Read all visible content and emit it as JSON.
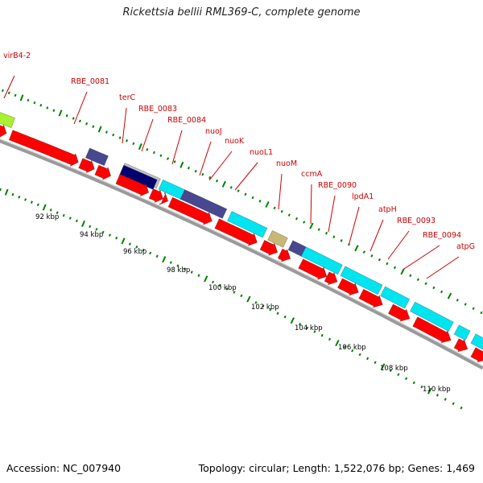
{
  "title": "Rickettsia bellii RML369-C, complete genome",
  "footer": {
    "accession": "Accession: NC_007940",
    "summary": "Topology: circular; Length: 1,522,076 bp; Genes: 1,469"
  },
  "colors": {
    "cds": "#ff0000",
    "cyan_feature": "#00e5f0",
    "navy_feature": "#484890",
    "dark_navy_feature": "#000070",
    "green_feature": "#a8f030",
    "tan_feature": "#c8b878",
    "gray_feature": "#c0c0c0",
    "label_color": "#cc0000",
    "tick_color": "#008000",
    "backbone": "#888888"
  },
  "gene_labels": [
    "virB4-2",
    "RBE_0081",
    "terC",
    "RBE_0083",
    "RBE_0084",
    "nuoJ",
    "nuoK",
    "nuoL1",
    "nuoM",
    "ccmA",
    "RBE_0090",
    "lpdA1",
    "atpH",
    "RBE_0093",
    "RBE_0094",
    "atpG"
  ],
  "tick_labels": [
    "92 kbp",
    "94 kbp",
    "96 kbp",
    "98 kbp",
    "100 kbp",
    "102 kbp",
    "104 kbp",
    "106 kbp",
    "108 kbp",
    "110 kbp"
  ]
}
